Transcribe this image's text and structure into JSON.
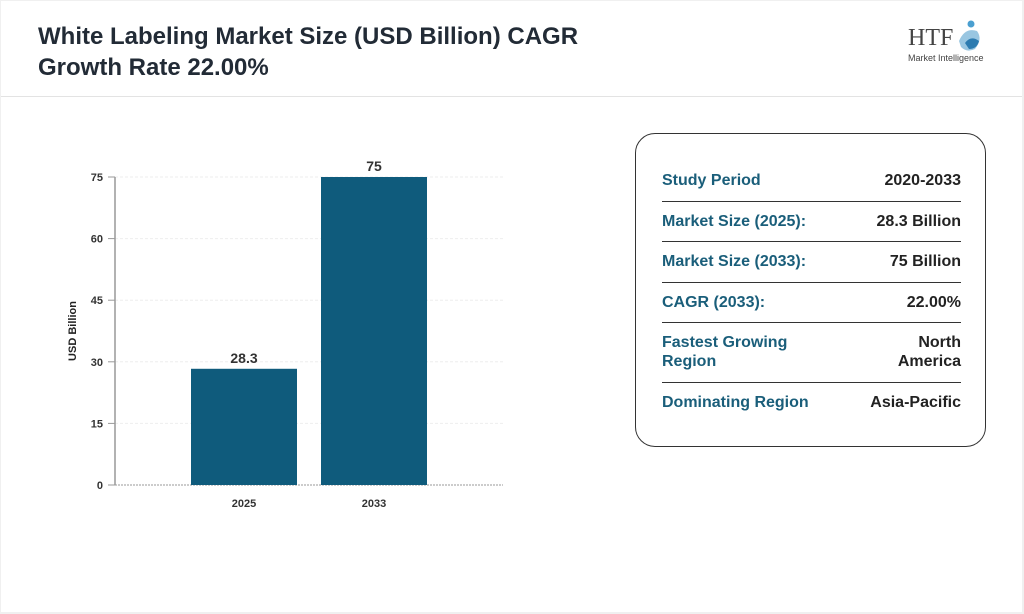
{
  "header": {
    "title": "White Labeling Market Size (USD Billion) CAGR Growth Rate 22.00%",
    "logo_text": "HTF",
    "logo_subtext": "Market Intelligence"
  },
  "chart_data": {
    "type": "bar",
    "categories": [
      "2025",
      "2033"
    ],
    "values": [
      28.3,
      75
    ],
    "data_labels": [
      "28.3",
      "75"
    ],
    "ylabel": "USD Billion",
    "xlabel": "",
    "ylim": [
      0,
      75
    ],
    "yticks": [
      0,
      15,
      30,
      45,
      60,
      75
    ],
    "grid": true,
    "bar_color": "#0f5b7c"
  },
  "summary": {
    "rows": [
      {
        "label": "Study Period",
        "value": "2020-2033"
      },
      {
        "label": "Market Size (2025):",
        "value": "28.3 Billion"
      },
      {
        "label": "Market Size (2033):",
        "value": "75 Billion"
      },
      {
        "label": "CAGR (2033):",
        "value": "22.00%"
      },
      {
        "label": "Fastest Growing Region",
        "value": "North America"
      },
      {
        "label": "Dominating Region",
        "value": "Asia-Pacific"
      }
    ]
  }
}
